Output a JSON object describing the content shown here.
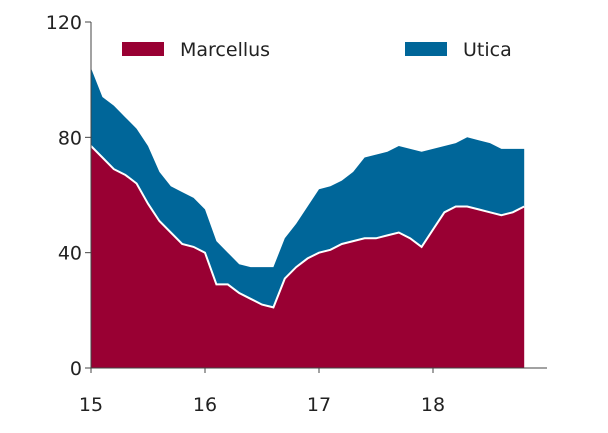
{
  "chart_data": {
    "type": "area",
    "stacked": true,
    "x": [
      15.0,
      15.1,
      15.2,
      15.3,
      15.4,
      15.5,
      15.6,
      15.7,
      15.8,
      15.9,
      16.0,
      16.1,
      16.2,
      16.3,
      16.4,
      16.5,
      16.6,
      16.7,
      16.8,
      16.9,
      17.0,
      17.1,
      17.2,
      17.3,
      17.4,
      17.5,
      17.6,
      17.7,
      17.8,
      17.9,
      18.0,
      18.1,
      18.2,
      18.3,
      18.4,
      18.5,
      18.6,
      18.7,
      18.8
    ],
    "series": [
      {
        "name": "Marcellus",
        "color": "#990033",
        "values": [
          77,
          73,
          69,
          67,
          64,
          57,
          51,
          47,
          43,
          42,
          40,
          29,
          29,
          26,
          24,
          22,
          21,
          31,
          35,
          38,
          40,
          41,
          43,
          44,
          45,
          45,
          46,
          47,
          45,
          42,
          48,
          54,
          56,
          56,
          55,
          54,
          53,
          54,
          56
        ]
      },
      {
        "name": "Utica",
        "color": "#006699",
        "values": [
          27,
          21,
          22,
          20,
          19,
          20,
          17,
          16,
          18,
          17,
          15,
          15,
          11,
          10,
          11,
          13,
          14,
          14,
          15,
          18,
          22,
          22,
          22,
          24,
          28,
          29,
          29,
          30,
          31,
          33,
          28,
          23,
          22,
          24,
          24,
          24,
          23,
          22,
          20
        ]
      }
    ],
    "x_ticks": [
      15,
      16,
      17,
      18
    ],
    "x_tick_labels": [
      "15",
      "16",
      "17",
      "18"
    ],
    "y_ticks": [
      0,
      40,
      80,
      120
    ],
    "y_tick_labels": [
      "0",
      "40",
      "80",
      "120"
    ],
    "xlim": [
      15.0,
      19.0
    ],
    "ylim": [
      0,
      120
    ],
    "grid": false,
    "legend_position": "top",
    "title": "",
    "xlabel": "",
    "ylabel": ""
  }
}
